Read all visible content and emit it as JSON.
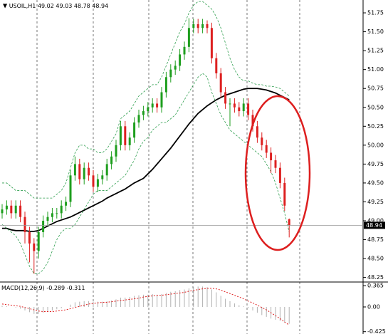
{
  "chart_data": [
    {
      "type": "candlestick",
      "title": "USOIL,H1",
      "up_color": "#1e9e1e",
      "down_color": "#dd2020",
      "open": [
        49.1,
        49.15,
        49.2,
        49.1,
        49.2,
        49.05,
        48.85,
        48.7,
        48.6,
        48.85,
        49.0,
        49.05,
        49.1,
        49.1,
        49.2,
        49.25,
        49.6,
        49.75,
        49.55,
        49.7,
        49.6,
        49.45,
        49.55,
        49.6,
        49.75,
        49.85,
        50.0,
        50.25,
        50.0,
        50.1,
        50.3,
        50.4,
        50.45,
        50.5,
        50.55,
        50.5,
        50.7,
        50.9,
        51.0,
        51.05,
        51.2,
        51.3,
        51.55,
        51.6,
        51.55,
        51.6,
        51.55,
        51.15,
        50.95,
        50.7,
        50.55,
        50.55,
        50.5,
        50.45,
        50.55,
        50.4,
        50.25,
        50.1,
        50.0,
        49.9,
        49.8,
        49.7,
        49.5,
        49.02
      ],
      "high": [
        49.22,
        49.27,
        49.27,
        49.27,
        49.27,
        49.12,
        48.92,
        48.77,
        48.92,
        49.07,
        49.12,
        49.17,
        49.17,
        49.27,
        49.32,
        49.67,
        49.85,
        49.82,
        49.77,
        49.77,
        49.67,
        49.62,
        49.67,
        49.82,
        49.92,
        50.07,
        50.32,
        50.32,
        50.17,
        50.37,
        50.47,
        50.52,
        50.57,
        50.62,
        50.62,
        50.77,
        50.97,
        51.07,
        51.12,
        51.27,
        51.37,
        51.68,
        51.67,
        51.67,
        51.67,
        51.65,
        51.62,
        51.22,
        51.02,
        50.77,
        50.62,
        50.62,
        50.57,
        50.62,
        50.62,
        50.47,
        50.32,
        50.17,
        50.07,
        49.97,
        49.87,
        49.77,
        49.57,
        49.03
      ],
      "low": [
        49.03,
        49.08,
        49.03,
        49.03,
        48.98,
        48.7,
        48.45,
        48.3,
        48.5,
        48.78,
        48.93,
        48.98,
        49.03,
        49.03,
        49.13,
        49.18,
        49.53,
        49.48,
        49.48,
        49.53,
        49.38,
        49.38,
        49.48,
        49.53,
        49.68,
        49.78,
        49.93,
        49.93,
        49.93,
        50.03,
        50.23,
        50.33,
        50.38,
        50.43,
        50.43,
        50.43,
        50.63,
        50.83,
        50.93,
        50.98,
        51.13,
        51.23,
        51.48,
        51.48,
        51.48,
        51.48,
        51.08,
        50.88,
        50.63,
        50.48,
        50.25,
        50.43,
        50.38,
        50.38,
        50.33,
        50.18,
        50.03,
        49.93,
        49.83,
        49.63,
        49.63,
        49.43,
        49.13,
        48.78
      ],
      "close": [
        49.15,
        49.2,
        49.1,
        49.2,
        49.05,
        48.85,
        48.7,
        48.6,
        48.85,
        49.0,
        49.05,
        49.1,
        49.1,
        49.2,
        49.25,
        49.6,
        49.75,
        49.55,
        49.7,
        49.6,
        49.45,
        49.55,
        49.6,
        49.75,
        49.85,
        50.0,
        50.25,
        50.0,
        50.1,
        50.3,
        50.4,
        50.45,
        50.5,
        50.55,
        50.5,
        50.7,
        50.9,
        51.0,
        51.05,
        51.2,
        51.3,
        51.55,
        51.6,
        51.55,
        51.6,
        51.55,
        51.15,
        50.95,
        50.7,
        50.55,
        50.55,
        50.5,
        50.45,
        50.55,
        50.4,
        50.25,
        50.1,
        50.0,
        49.9,
        49.8,
        49.7,
        49.5,
        49.2,
        48.94
      ],
      "overlays": [
        {
          "color": "#000000",
          "dash": false,
          "values": [
            48.9,
            48.9,
            48.88,
            48.87,
            48.87,
            48.87,
            48.86,
            48.86,
            48.87,
            48.9,
            48.93,
            48.96,
            48.99,
            49.01,
            49.03,
            49.05,
            49.08,
            49.11,
            49.14,
            49.17,
            49.2,
            49.23,
            49.26,
            49.3,
            49.33,
            49.36,
            49.39,
            49.42,
            49.46,
            49.5,
            49.53,
            49.56,
            49.62,
            49.68,
            49.75,
            49.82,
            49.89,
            49.96,
            50.04,
            50.12,
            50.2,
            50.28,
            50.35,
            50.42,
            50.47,
            50.52,
            50.56,
            50.6,
            50.63,
            50.66,
            50.68,
            50.7,
            50.72,
            50.74,
            50.75,
            50.75,
            50.75,
            50.74,
            50.73,
            50.71,
            50.69,
            50.66,
            50.63,
            50.6
          ]
        },
        {
          "color": "#2e9e4e",
          "dash": true,
          "values": [
            49.5,
            49.5,
            49.45,
            49.4,
            49.4,
            49.4,
            49.35,
            49.3,
            49.3,
            49.3,
            49.3,
            49.3,
            49.35,
            49.4,
            49.5,
            49.7,
            49.9,
            50.0,
            50.0,
            49.95,
            49.95,
            49.9,
            49.9,
            49.95,
            50.05,
            50.15,
            50.35,
            50.4,
            50.45,
            50.55,
            50.65,
            50.7,
            50.75,
            50.8,
            50.8,
            50.9,
            51.05,
            51.2,
            51.35,
            51.5,
            51.6,
            51.75,
            51.85,
            51.9,
            51.9,
            51.85,
            51.8,
            51.7,
            51.55,
            51.35,
            51.15,
            51.0,
            50.9,
            50.85,
            50.85,
            50.82,
            50.8,
            50.8,
            50.78,
            50.78,
            50.77,
            50.75,
            50.7,
            50.65
          ]
        },
        {
          "color": "#2e9e4e",
          "dash": true,
          "values": [
            48.95,
            48.9,
            48.85,
            48.8,
            48.7,
            48.55,
            48.4,
            48.3,
            48.3,
            48.35,
            48.45,
            48.6,
            48.75,
            48.85,
            48.9,
            48.9,
            48.95,
            49.05,
            49.15,
            49.25,
            49.35,
            49.4,
            49.4,
            49.4,
            49.45,
            49.5,
            49.55,
            49.6,
            49.7,
            49.8,
            49.95,
            50.05,
            50.1,
            50.2,
            50.25,
            50.3,
            50.3,
            50.35,
            50.4,
            50.5,
            50.6,
            50.7,
            50.8,
            50.9,
            50.95,
            50.9,
            50.7,
            50.55,
            50.4,
            50.3,
            50.2,
            50.15,
            50.1,
            50.05,
            50.0,
            49.95,
            49.9,
            49.85,
            49.75,
            49.65,
            49.5,
            49.3,
            49.1,
            48.85
          ]
        }
      ],
      "ylim": [
        48.19,
        51.92
      ],
      "yticks": [
        48.25,
        {
          "value": 48.5,
          "label": "48.50"
        },
        48.75,
        {
          "value": 49,
          "label": "49.00"
        },
        49.25,
        {
          "value": 49.5,
          "label": "49.50"
        },
        49.75,
        {
          "value": 50,
          "label": "50.00"
        },
        50.25,
        {
          "value": 50.5,
          "label": "50.50"
        },
        50.75,
        {
          "value": 51,
          "label": "51.00"
        },
        51.25,
        {
          "value": 51.5,
          "label": "51.50"
        },
        51.75
      ]
    },
    {
      "type": "macd",
      "title": "MACD(12,26,9)",
      "histogram": {
        "color": "#b0b0b0",
        "values": [
          0.02,
          0.01,
          0.0,
          -0.01,
          -0.03,
          -0.06,
          -0.09,
          -0.12,
          -0.12,
          -0.1,
          -0.08,
          -0.06,
          -0.04,
          -0.02,
          0.0,
          0.04,
          0.08,
          0.09,
          0.1,
          0.1,
          0.09,
          0.09,
          0.09,
          0.1,
          0.11,
          0.13,
          0.16,
          0.16,
          0.17,
          0.19,
          0.2,
          0.21,
          0.21,
          0.22,
          0.21,
          0.22,
          0.24,
          0.26,
          0.27,
          0.29,
          0.3,
          0.32,
          0.34,
          0.35,
          0.35,
          0.34,
          0.3,
          0.25,
          0.19,
          0.14,
          0.1,
          0.06,
          0.03,
          0.01,
          -0.02,
          -0.06,
          -0.1,
          -0.14,
          -0.17,
          -0.2,
          -0.22,
          -0.24,
          -0.27,
          -0.289
        ]
      },
      "signal": {
        "color": "#e02020",
        "values": [
          0.05,
          0.04,
          0.03,
          0.02,
          0.01,
          -0.01,
          -0.03,
          -0.05,
          -0.07,
          -0.08,
          -0.08,
          -0.08,
          -0.07,
          -0.06,
          -0.05,
          -0.03,
          -0.01,
          0.01,
          0.03,
          0.05,
          0.06,
          0.07,
          0.08,
          0.08,
          0.09,
          0.1,
          0.11,
          0.12,
          0.13,
          0.14,
          0.15,
          0.17,
          0.18,
          0.19,
          0.2,
          0.2,
          0.21,
          0.22,
          0.23,
          0.24,
          0.25,
          0.27,
          0.28,
          0.3,
          0.31,
          0.32,
          0.32,
          0.31,
          0.29,
          0.26,
          0.23,
          0.2,
          0.17,
          0.14,
          0.1,
          0.07,
          0.03,
          -0.01,
          -0.05,
          -0.1,
          -0.15,
          -0.2,
          -0.26,
          -0.311
        ]
      },
      "ylim": [
        -0.465,
        0.428
      ],
      "yticks": [
        0.365,
        {
          "value": 0,
          "label": "0.00"
        },
        -0.425
      ]
    }
  ]
}
